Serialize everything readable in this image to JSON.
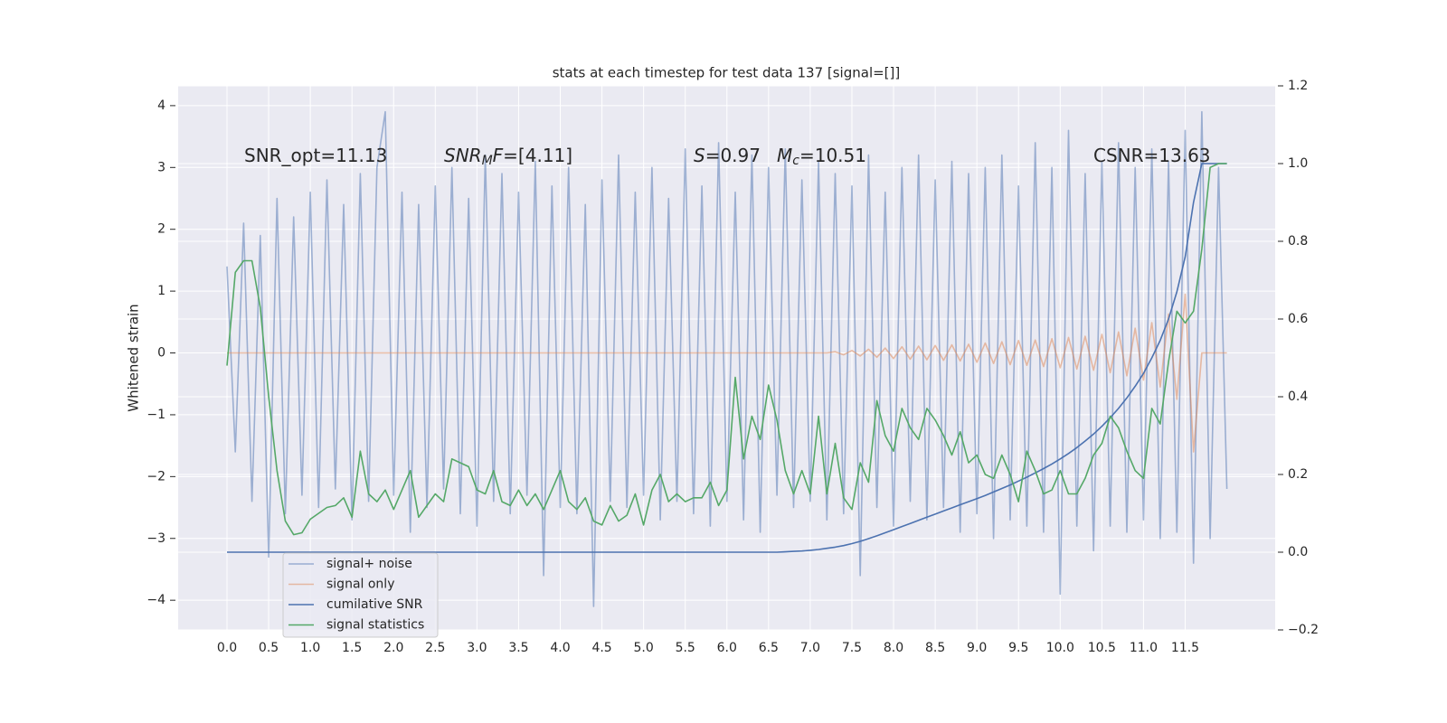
{
  "chart_data": {
    "type": "line",
    "title": "stats at each timestep for test data 137 [signal=[]]",
    "ylabel": "Whitened strain",
    "annotations": [
      [
        {
          "text": "SNR_opt=11.13"
        }
      ],
      [
        {
          "text": "SNR",
          "italic": true
        },
        {
          "text": "M",
          "italic": true,
          "sub": true
        },
        {
          "text": "F",
          "italic": true
        },
        {
          "text": "=[4.11]"
        }
      ],
      [
        {
          "text": "S",
          "italic": true
        },
        {
          "text": "=0.97"
        }
      ],
      [
        {
          "text": "M",
          "italic": true
        },
        {
          "text": "c",
          "italic": true,
          "sub": true
        },
        {
          "text": "=10.51"
        }
      ],
      [
        {
          "text": "CSNR=13.63"
        }
      ]
    ],
    "x": [
      0.0,
      0.1,
      0.2,
      0.3,
      0.4,
      0.5,
      0.6,
      0.7,
      0.8,
      0.9,
      1.0,
      1.1,
      1.2,
      1.3,
      1.4,
      1.5,
      1.6,
      1.7,
      1.8,
      1.9,
      2.0,
      2.1,
      2.2,
      2.3,
      2.4,
      2.5,
      2.6,
      2.7,
      2.8,
      2.9,
      3.0,
      3.1,
      3.2,
      3.3,
      3.4,
      3.5,
      3.6,
      3.7,
      3.8,
      3.9,
      4.0,
      4.1,
      4.2,
      4.3,
      4.4,
      4.5,
      4.6,
      4.7,
      4.8,
      4.9,
      5.0,
      5.1,
      5.2,
      5.3,
      5.4,
      5.5,
      5.6,
      5.7,
      5.8,
      5.9,
      6.0,
      6.1,
      6.2,
      6.3,
      6.4,
      6.5,
      6.6,
      6.7,
      6.8,
      6.9,
      7.0,
      7.1,
      7.2,
      7.3,
      7.4,
      7.5,
      7.6,
      7.7,
      7.8,
      7.9,
      8.0,
      8.1,
      8.2,
      8.3,
      8.4,
      8.5,
      8.6,
      8.7,
      8.8,
      8.9,
      9.0,
      9.1,
      9.2,
      9.3,
      9.4,
      9.5,
      9.6,
      9.7,
      9.8,
      9.9,
      10.0,
      10.1,
      10.2,
      10.3,
      10.4,
      10.5,
      10.6,
      10.7,
      10.8,
      10.9,
      11.0,
      11.1,
      11.2,
      11.3,
      11.4,
      11.5,
      11.6,
      11.7,
      11.8,
      11.9,
      12.0
    ],
    "series": [
      {
        "name": "signal+ noise",
        "color": "#4c72b0",
        "alpha": 0.5,
        "values": [
          1.4,
          -1.6,
          2.1,
          -2.4,
          1.9,
          -3.3,
          2.5,
          -2.6,
          2.2,
          -2.3,
          2.6,
          -2.5,
          2.8,
          -2.2,
          2.4,
          -2.7,
          2.9,
          -2.4,
          3.0,
          3.9,
          -2.3,
          2.6,
          -2.9,
          2.4,
          -2.5,
          2.7,
          -2.2,
          3.0,
          -2.6,
          2.5,
          -2.8,
          3.2,
          -2.4,
          2.9,
          -2.6,
          2.6,
          -2.3,
          3.1,
          -3.6,
          2.7,
          -2.5,
          3.0,
          -2.6,
          2.4,
          -4.1,
          2.8,
          -2.4,
          3.2,
          -2.5,
          2.6,
          -2.3,
          3.0,
          -2.7,
          2.5,
          -2.4,
          3.3,
          -2.6,
          2.7,
          -2.8,
          3.4,
          -2.4,
          2.6,
          -2.7,
          3.2,
          -2.9,
          3.0,
          -2.3,
          3.3,
          -2.5,
          2.8,
          -2.4,
          3.1,
          -2.7,
          2.9,
          -2.6,
          2.7,
          -3.6,
          3.2,
          -2.5,
          2.6,
          -2.8,
          3.0,
          -2.4,
          3.2,
          -2.7,
          2.8,
          -2.5,
          3.1,
          -2.9,
          2.9,
          -2.6,
          3.0,
          -3.0,
          3.2,
          -2.7,
          2.7,
          -2.8,
          3.4,
          -2.9,
          3.0,
          -3.9,
          3.6,
          -2.8,
          2.9,
          -3.2,
          3.1,
          -2.8,
          3.4,
          -2.9,
          3.0,
          -2.7,
          3.3,
          -3.0,
          3.1,
          -2.9,
          3.6,
          -3.4,
          3.9,
          -3.0,
          3.0,
          -2.2
        ]
      },
      {
        "name": "signal only",
        "color": "#dd8452",
        "alpha": 0.5,
        "values": [
          0,
          0,
          0,
          0,
          0,
          0,
          0,
          0,
          0,
          0,
          0,
          0,
          0,
          0,
          0,
          0,
          0,
          0,
          0,
          0,
          0,
          0,
          0,
          0,
          0,
          0,
          0,
          0,
          0,
          0,
          0,
          0,
          0,
          0,
          0,
          0,
          0,
          0,
          0,
          0,
          0,
          0,
          0,
          0,
          0,
          0,
          0,
          0,
          0,
          0,
          0,
          0,
          0,
          0,
          0,
          0,
          0,
          0,
          0,
          0,
          0,
          0,
          0,
          0,
          0,
          0,
          0,
          0,
          0,
          0,
          0,
          0,
          0,
          0.02,
          -0.03,
          0.04,
          -0.05,
          0.06,
          -0.07,
          0.08,
          -0.09,
          0.1,
          -0.1,
          0.11,
          -0.11,
          0.12,
          -0.12,
          0.13,
          -0.13,
          0.14,
          -0.15,
          0.16,
          -0.17,
          0.18,
          -0.19,
          0.2,
          -0.2,
          0.21,
          -0.22,
          0.23,
          -0.24,
          0.25,
          -0.26,
          0.27,
          -0.28,
          0.3,
          -0.32,
          0.34,
          -0.37,
          0.4,
          -0.44,
          0.49,
          -0.55,
          0.63,
          -0.75,
          0.95,
          -1.6,
          0,
          0,
          0,
          0
        ]
      },
      {
        "name": "cumilative SNR",
        "color": "#4c72b0",
        "axis": "y2",
        "values": [
          0,
          0,
          0,
          0,
          0,
          0,
          0,
          0,
          0,
          0,
          0,
          0,
          0,
          0,
          0,
          0,
          0,
          0,
          0,
          0,
          0,
          0,
          0,
          0,
          0,
          0,
          0,
          0,
          0,
          0,
          0,
          0,
          0,
          0,
          0,
          0,
          0,
          0,
          0,
          0,
          0,
          0,
          0,
          0,
          0,
          0,
          0,
          0,
          0,
          0,
          0,
          0,
          0,
          0,
          0,
          0,
          0,
          0,
          0,
          0,
          0,
          0,
          0,
          0,
          0,
          0,
          0,
          0.001,
          0.002,
          0.003,
          0.005,
          0.007,
          0.01,
          0.013,
          0.017,
          0.022,
          0.028,
          0.035,
          0.042,
          0.05,
          0.058,
          0.066,
          0.074,
          0.082,
          0.09,
          0.098,
          0.106,
          0.114,
          0.122,
          0.13,
          0.138,
          0.146,
          0.155,
          0.164,
          0.173,
          0.183,
          0.193,
          0.204,
          0.215,
          0.227,
          0.24,
          0.254,
          0.269,
          0.286,
          0.304,
          0.324,
          0.346,
          0.37,
          0.397,
          0.427,
          0.46,
          0.5,
          0.545,
          0.6,
          0.67,
          0.76,
          0.9,
          1.0,
          1.0,
          1.0,
          1.0
        ]
      },
      {
        "name": "signal statistics",
        "color": "#55a868",
        "axis": "y2",
        "values": [
          0.48,
          0.72,
          0.75,
          0.75,
          0.63,
          0.4,
          0.21,
          0.08,
          0.045,
          0.05,
          0.085,
          0.1,
          0.115,
          0.12,
          0.14,
          0.09,
          0.26,
          0.15,
          0.13,
          0.16,
          0.11,
          0.16,
          0.21,
          0.09,
          0.12,
          0.15,
          0.13,
          0.24,
          0.23,
          0.22,
          0.16,
          0.15,
          0.21,
          0.13,
          0.12,
          0.16,
          0.12,
          0.15,
          0.11,
          0.16,
          0.21,
          0.13,
          0.11,
          0.14,
          0.08,
          0.07,
          0.12,
          0.08,
          0.095,
          0.15,
          0.07,
          0.16,
          0.2,
          0.13,
          0.15,
          0.13,
          0.14,
          0.14,
          0.18,
          0.12,
          0.16,
          0.45,
          0.24,
          0.35,
          0.29,
          0.43,
          0.34,
          0.21,
          0.15,
          0.21,
          0.15,
          0.35,
          0.15,
          0.28,
          0.14,
          0.11,
          0.23,
          0.18,
          0.39,
          0.3,
          0.26,
          0.37,
          0.32,
          0.29,
          0.37,
          0.34,
          0.3,
          0.25,
          0.31,
          0.23,
          0.25,
          0.2,
          0.19,
          0.25,
          0.2,
          0.13,
          0.26,
          0.21,
          0.15,
          0.16,
          0.21,
          0.15,
          0.15,
          0.19,
          0.25,
          0.28,
          0.35,
          0.32,
          0.26,
          0.21,
          0.19,
          0.37,
          0.33,
          0.49,
          0.62,
          0.59,
          0.62,
          0.78,
          0.99,
          1.0,
          1.0
        ]
      }
    ],
    "xlim": [
      -0.586,
      12.58
    ],
    "xticks": [
      {
        "value": 0,
        "label": "0.0"
      },
      0.5,
      {
        "value": 1,
        "label": "1.0"
      },
      1.5,
      {
        "value": 2,
        "label": "2.0"
      },
      2.5,
      {
        "value": 3,
        "label": "3.0"
      },
      3.5,
      {
        "value": 4,
        "label": "4.0"
      },
      4.5,
      {
        "value": 5,
        "label": "5.0"
      },
      5.5,
      {
        "value": 6,
        "label": "6.0"
      },
      6.5,
      {
        "value": 7,
        "label": "7.0"
      },
      7.5,
      {
        "value": 8,
        "label": "8.0"
      },
      8.5,
      {
        "value": 9,
        "label": "9.0"
      },
      9.5,
      {
        "value": 10,
        "label": "10.0"
      },
      10.5,
      {
        "value": 11,
        "label": "11.0"
      },
      11.5
    ],
    "ylim": [
      -4.48,
      4.32
    ],
    "yticks": [
      {
        "value": -4,
        "label": "−4"
      },
      {
        "value": -3,
        "label": "−3"
      },
      {
        "value": -2,
        "label": "−2"
      },
      {
        "value": -1,
        "label": "−1"
      },
      0,
      1,
      2,
      3,
      4
    ],
    "y2lim": [
      -0.2,
      1.2
    ],
    "y2ticks": [
      {
        "value": -0.2,
        "label": "−0.2"
      },
      {
        "value": 0,
        "label": "0.0"
      },
      0.2,
      0.4,
      0.6,
      0.8,
      {
        "value": 1,
        "label": "1.0"
      },
      1.2
    ],
    "grid": true,
    "legend": "lower left"
  }
}
